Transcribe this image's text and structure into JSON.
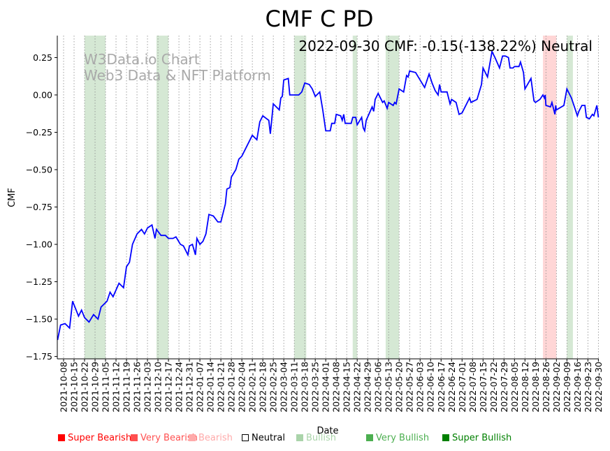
{
  "chart_data": {
    "type": "line",
    "title": "CMF C PD",
    "annotation": "2022-09-30 CMF: -0.15(-138.22%) Neutral",
    "watermark": [
      "W3Data.io Chart",
      "Web3 Data & NFT Platform"
    ],
    "xlabel": "Date",
    "ylabel": "CMF",
    "x_origin": "2021-10-08",
    "x_unit": "days since x_origin",
    "xlim": [
      -4.2,
      357.3
    ],
    "ylim": [
      -1.766,
      0.397
    ],
    "grid": "vertical dotted at x ticks",
    "yticks": [
      0.25,
      0.0,
      -0.25,
      -0.5,
      -0.75,
      -1.0,
      -1.25,
      -1.5,
      -1.75
    ],
    "ytick_labels": [
      "0.25",
      "0.00",
      "−0.25",
      "−0.50",
      "−0.75",
      "−1.00",
      "−1.25",
      "−1.50",
      "−1.75"
    ],
    "xtick_labels": [
      "2021-10-08",
      "2021-10-15",
      "2021-10-22",
      "2021-10-29",
      "2021-11-05",
      "2021-11-12",
      "2021-11-19",
      "2021-11-26",
      "2021-12-03",
      "2021-12-10",
      "2021-12-17",
      "2021-12-24",
      "2021-12-31",
      "2022-01-07",
      "2022-01-14",
      "2022-01-21",
      "2022-01-28",
      "2022-02-04",
      "2022-02-11",
      "2022-02-18",
      "2022-02-25",
      "2022-03-04",
      "2022-03-11",
      "2022-03-18",
      "2022-03-25",
      "2022-04-01",
      "2022-04-08",
      "2022-04-15",
      "2022-04-22",
      "2022-04-29",
      "2022-05-06",
      "2022-05-13",
      "2022-05-20",
      "2022-05-27",
      "2022-06-03",
      "2022-06-10",
      "2022-06-17",
      "2022-06-24",
      "2022-07-01",
      "2022-07-08",
      "2022-07-15",
      "2022-07-22",
      "2022-07-29",
      "2022-08-05",
      "2022-08-12",
      "2022-08-19",
      "2022-08-26",
      "2022-09-02",
      "2022-09-09",
      "2022-09-16",
      "2022-09-23",
      "2022-09-30"
    ],
    "series": [
      {
        "name": "CMF",
        "color": "#0000ff",
        "points": [
          [
            -4,
            -1.64
          ],
          [
            -2,
            -1.54
          ],
          [
            1,
            -1.53
          ],
          [
            4,
            -1.56
          ],
          [
            6,
            -1.38
          ],
          [
            10,
            -1.48
          ],
          [
            12,
            -1.44
          ],
          [
            14,
            -1.49
          ],
          [
            17,
            -1.52
          ],
          [
            20,
            -1.47
          ],
          [
            23,
            -1.5
          ],
          [
            25,
            -1.42
          ],
          [
            29,
            -1.38
          ],
          [
            31,
            -1.32
          ],
          [
            33,
            -1.35
          ],
          [
            37,
            -1.26
          ],
          [
            40,
            -1.29
          ],
          [
            42,
            -1.15
          ],
          [
            44,
            -1.12
          ],
          [
            46,
            -1.0
          ],
          [
            49,
            -0.93
          ],
          [
            52,
            -0.9
          ],
          [
            54,
            -0.93
          ],
          [
            56,
            -0.89
          ],
          [
            59,
            -0.87
          ],
          [
            61,
            -0.96
          ],
          [
            62,
            -0.9
          ],
          [
            65,
            -0.94
          ],
          [
            68,
            -0.94
          ],
          [
            70,
            -0.96
          ],
          [
            73,
            -0.96
          ],
          [
            75,
            -0.95
          ],
          [
            78,
            -1.0
          ],
          [
            80,
            -1.01
          ],
          [
            83,
            -1.07
          ],
          [
            84,
            -1.01
          ],
          [
            86,
            -1.0
          ],
          [
            88,
            -1.07
          ],
          [
            89,
            -0.96
          ],
          [
            91,
            -1.0
          ],
          [
            93,
            -0.98
          ],
          [
            95,
            -0.93
          ],
          [
            97,
            -0.8
          ],
          [
            100,
            -0.81
          ],
          [
            103,
            -0.85
          ],
          [
            105,
            -0.85
          ],
          [
            108,
            -0.73
          ],
          [
            109,
            -0.63
          ],
          [
            111,
            -0.62
          ],
          [
            112,
            -0.55
          ],
          [
            115,
            -0.5
          ],
          [
            117,
            -0.43
          ],
          [
            119,
            -0.41
          ],
          [
            124,
            -0.31
          ],
          [
            126,
            -0.27
          ],
          [
            129,
            -0.3
          ],
          [
            131,
            -0.18
          ],
          [
            133,
            -0.14
          ],
          [
            137,
            -0.17
          ],
          [
            138,
            -0.26
          ],
          [
            140,
            -0.06
          ],
          [
            144,
            -0.1
          ],
          [
            145,
            -0.02
          ],
          [
            146,
            -0.01
          ],
          [
            147,
            0.1
          ],
          [
            150,
            0.11
          ],
          [
            151,
            0.0
          ],
          [
            157,
            0.0
          ],
          [
            159,
            0.02
          ],
          [
            161,
            0.08
          ],
          [
            164,
            0.07
          ],
          [
            166,
            0.04
          ],
          [
            168,
            -0.01
          ],
          [
            171,
            0.02
          ],
          [
            173,
            -0.1
          ],
          [
            175,
            -0.24
          ],
          [
            178,
            -0.24
          ],
          [
            179,
            -0.19
          ],
          [
            181,
            -0.19
          ],
          [
            182,
            -0.13
          ],
          [
            185,
            -0.14
          ],
          [
            186,
            -0.17
          ],
          [
            187,
            -0.13
          ],
          [
            188,
            -0.19
          ],
          [
            192,
            -0.19
          ],
          [
            193,
            -0.15
          ],
          [
            195,
            -0.15
          ],
          [
            196,
            -0.2
          ],
          [
            199,
            -0.15
          ],
          [
            200,
            -0.22
          ],
          [
            201,
            -0.24
          ],
          [
            202,
            -0.17
          ],
          [
            206,
            -0.08
          ],
          [
            207,
            -0.11
          ],
          [
            208,
            -0.03
          ],
          [
            210,
            0.01
          ],
          [
            213,
            -0.05
          ],
          [
            214,
            -0.04
          ],
          [
            216,
            -0.09
          ],
          [
            217,
            -0.05
          ],
          [
            220,
            -0.07
          ],
          [
            221,
            -0.05
          ],
          [
            222,
            -0.06
          ],
          [
            224,
            0.04
          ],
          [
            227,
            0.02
          ],
          [
            229,
            0.13
          ],
          [
            230,
            0.12
          ],
          [
            231,
            0.16
          ],
          [
            235,
            0.15
          ],
          [
            238,
            0.1
          ],
          [
            241,
            0.05
          ],
          [
            243,
            0.11
          ],
          [
            244,
            0.14
          ],
          [
            246,
            0.08
          ],
          [
            248,
            0.03
          ],
          [
            250,
            0.0
          ],
          [
            251,
            0.07
          ],
          [
            252,
            0.02
          ],
          [
            256,
            0.02
          ],
          [
            258,
            -0.06
          ],
          [
            259,
            -0.03
          ],
          [
            262,
            -0.05
          ],
          [
            264,
            -0.13
          ],
          [
            266,
            -0.12
          ],
          [
            271,
            -0.02
          ],
          [
            272,
            -0.05
          ],
          [
            276,
            -0.03
          ],
          [
            279,
            0.07
          ],
          [
            280,
            0.18
          ],
          [
            283,
            0.12
          ],
          [
            286,
            0.29
          ],
          [
            288,
            0.25
          ],
          [
            291,
            0.18
          ],
          [
            293,
            0.26
          ],
          [
            295,
            0.26
          ],
          [
            297,
            0.25
          ],
          [
            298,
            0.18
          ],
          [
            300,
            0.18
          ],
          [
            301,
            0.19
          ],
          [
            304,
            0.19
          ],
          [
            305,
            0.22
          ],
          [
            307,
            0.15
          ],
          [
            308,
            0.04
          ],
          [
            312,
            0.11
          ],
          [
            314,
            -0.04
          ],
          [
            315,
            -0.05
          ],
          [
            318,
            -0.03
          ],
          [
            320,
            0.0
          ],
          [
            321,
            -0.02
          ],
          [
            321.5,
            0.0
          ],
          [
            322,
            -0.07
          ],
          [
            325,
            -0.08
          ],
          [
            326,
            -0.05
          ],
          [
            328,
            -0.13
          ],
          [
            328.5,
            -0.07
          ],
          [
            329,
            -0.1
          ],
          [
            334,
            -0.07
          ],
          [
            336,
            0.04
          ],
          [
            339,
            -0.02
          ],
          [
            341,
            -0.08
          ],
          [
            343,
            -0.14
          ],
          [
            344,
            -0.11
          ],
          [
            346,
            -0.07
          ],
          [
            348,
            -0.07
          ],
          [
            349,
            -0.15
          ],
          [
            351,
            -0.16
          ],
          [
            353,
            -0.13
          ],
          [
            354,
            -0.14
          ],
          [
            356,
            -0.07
          ],
          [
            357,
            -0.15
          ]
        ]
      }
    ],
    "regions": [
      {
        "start": 14,
        "end": 28,
        "state": "Bullish"
      },
      {
        "start": 62,
        "end": 70,
        "state": "Bullish"
      },
      {
        "start": 154,
        "end": 162,
        "state": "Bullish"
      },
      {
        "start": 193,
        "end": 196,
        "state": "Bullish"
      },
      {
        "start": 215,
        "end": 224,
        "state": "Bullish"
      },
      {
        "start": 320,
        "end": 329,
        "state": "Bearish"
      },
      {
        "start": 336,
        "end": 340,
        "state": "Bullish"
      }
    ],
    "region_colors": {
      "Bullish": "#d5e8d4",
      "Bearish": "#ffd6d6"
    },
    "legend": [
      {
        "label": "Super Bearish",
        "color": "#ff0000"
      },
      {
        "label": "Very Bearish",
        "color": "#ff5050"
      },
      {
        "label": "Bearish",
        "color": "#ffaaaa"
      },
      {
        "label": "Neutral",
        "color": "#000000"
      },
      {
        "label": "Bullish",
        "color": "#aad4aa"
      },
      {
        "label": "Very Bullish",
        "color": "#4caf50"
      },
      {
        "label": "Super Bullish",
        "color": "#008000"
      }
    ]
  }
}
